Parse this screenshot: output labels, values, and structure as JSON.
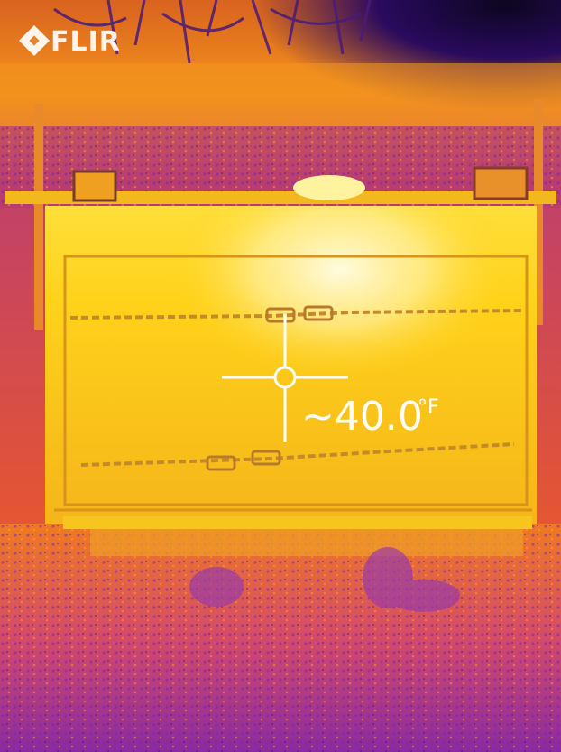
{
  "overlay": {
    "brand": "FLIR",
    "spot_temperature": "~40.0",
    "temperature_unit": "°F"
  },
  "palette": {
    "cold": "#2a0a5e",
    "cool": "#7a2aa8",
    "mid": "#e04a7a",
    "warm": "#f58a1f",
    "hot": "#ffd21a",
    "hottest": "#fff6b0"
  },
  "icons": {
    "brand_logo": "flir-diamond-icon",
    "measurement_marker": "crosshair-icon"
  }
}
